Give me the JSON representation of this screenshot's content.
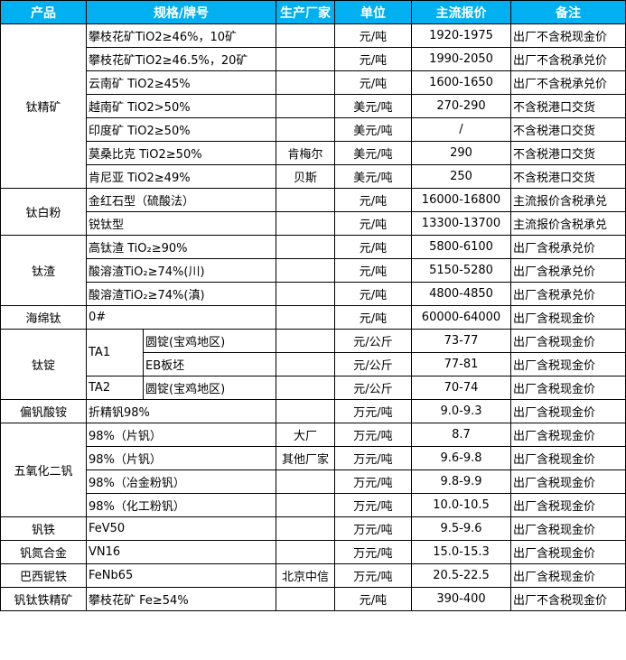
{
  "header": {
    "colors": {
      "header_bg": "#00b0f0",
      "header_text": "#ffffff"
    },
    "columns": [
      "产品",
      "规格/牌号",
      "生产厂家",
      "单位",
      "主流报价",
      "备注"
    ]
  },
  "groups": [
    {
      "product": "钛精矿",
      "rows": [
        {
          "spec": "攀枝花矿TiO2≥46%，10矿",
          "maker": "",
          "unit": "元/吨",
          "price": "1920-1975",
          "note": "出厂不含税现金价"
        },
        {
          "spec": "攀枝花矿TiO2≥46.5%，20矿",
          "maker": "",
          "unit": "元/吨",
          "price": "1990-2050",
          "note": "出厂不含税承兑价"
        },
        {
          "spec": "云南矿 TiO2≥45%",
          "maker": "",
          "unit": "元/吨",
          "price": "1600-1650",
          "note": "出厂不含税承兑价"
        },
        {
          "spec": "越南矿 TiO2>50%",
          "maker": "",
          "unit": "美元/吨",
          "price": "270-290",
          "note": "不含税港口交货"
        },
        {
          "spec": "印度矿 TiO2≥50%",
          "maker": "",
          "unit": "美元/吨",
          "price": "/",
          "note": "不含税港口交货"
        },
        {
          "spec": "莫桑比克 TiO2≥50%",
          "maker": "肯梅尔",
          "unit": "美元/吨",
          "price": "290",
          "note": "不含税港口交货"
        },
        {
          "spec": "肯尼亚 TiO2≥49%",
          "maker": "贝斯",
          "unit": "美元/吨",
          "price": "250",
          "note": "不含税港口交货"
        }
      ]
    },
    {
      "product": "钛白粉",
      "rows": [
        {
          "spec": "金红石型（硫酸法）",
          "maker": "",
          "unit": "元/吨",
          "price": "16000-16800",
          "note": "主流报价含税承兑"
        },
        {
          "spec": "锐钛型",
          "maker": "",
          "unit": "元/吨",
          "price": "13300-13700",
          "note": "主流报价含税承兑"
        }
      ]
    },
    {
      "product": "钛渣",
      "rows": [
        {
          "spec": "高钛渣 TiO₂≥90%",
          "maker": "",
          "unit": "元/吨",
          "price": "5800-6100",
          "note": "出厂含税承兑价"
        },
        {
          "spec": "酸溶渣TiO₂≥74%(川)",
          "maker": "",
          "unit": "元/吨",
          "price": "5150-5280",
          "note": "出厂含税承兑价"
        },
        {
          "spec": "酸溶渣TiO₂≥74%(滇)",
          "maker": "",
          "unit": "元/吨",
          "price": "4800-4850",
          "note": "出厂含税承兑价"
        }
      ]
    },
    {
      "product": "海绵钛",
      "rows": [
        {
          "spec": "0#",
          "maker": "",
          "unit": "元/吨",
          "price": "60000-64000",
          "note": "出厂含税现金价"
        }
      ]
    },
    {
      "product": "钛锭",
      "rows": [
        {
          "grade": "TA1",
          "form": "圆锭(宝鸡地区)",
          "maker": "",
          "unit": "元/公斤",
          "price": "73-77",
          "note": "出厂含税现金价"
        },
        {
          "grade": "TA1",
          "form": "EB板坯",
          "maker": "",
          "unit": "元/公斤",
          "price": "77-81",
          "note": "出厂含税现金价"
        },
        {
          "grade": "TA2",
          "form": "圆锭(宝鸡地区)",
          "maker": "",
          "unit": "元/公斤",
          "price": "70-74",
          "note": "出厂含税现金价"
        }
      ]
    },
    {
      "product": "偏钒酸铵",
      "rows": [
        {
          "spec": "折精钒98%",
          "maker": "",
          "unit": "万元/吨",
          "price": "9.0-9.3",
          "note": "出厂含税现金价"
        }
      ]
    },
    {
      "product": "五氧化二钒",
      "rows": [
        {
          "spec": "98%（片钒）",
          "maker": "大厂",
          "unit": "万元/吨",
          "price": "8.7",
          "note": "出厂含税现金价"
        },
        {
          "spec": "98%（片钒）",
          "maker": "其他厂家",
          "unit": "万元/吨",
          "price": "9.6-9.8",
          "note": "出厂含税现金价"
        },
        {
          "spec": "98%（冶金粉钒）",
          "maker": "",
          "unit": "万元/吨",
          "price": "9.8-9.9",
          "note": "出厂含税现金价"
        },
        {
          "spec": "98%（化工粉钒）",
          "maker": "",
          "unit": "万元/吨",
          "price": "10.0-10.5",
          "note": "出厂含税现金价"
        }
      ]
    },
    {
      "product": "钒铁",
      "rows": [
        {
          "spec": "FeV50",
          "maker": "",
          "unit": "万元/吨",
          "price": "9.5-9.6",
          "note": "出厂含税现金价"
        }
      ]
    },
    {
      "product": "钒氮合金",
      "rows": [
        {
          "spec": "VN16",
          "maker": "",
          "unit": "万元/吨",
          "price": "15.0-15.3",
          "note": "出厂含税现金价"
        }
      ]
    },
    {
      "product": "巴西铌铁",
      "rows": [
        {
          "spec": "FeNb65",
          "maker": "北京中信",
          "unit": "万元/吨",
          "price": "20.5-22.5",
          "note": "出厂含税现金价"
        }
      ]
    },
    {
      "product": "钒钛铁精矿",
      "rows": [
        {
          "spec": "攀枝花矿 Fe≥54%",
          "maker": "",
          "unit": "元/吨",
          "price": "390-400",
          "note": "出厂不含税现金价"
        }
      ]
    }
  ]
}
